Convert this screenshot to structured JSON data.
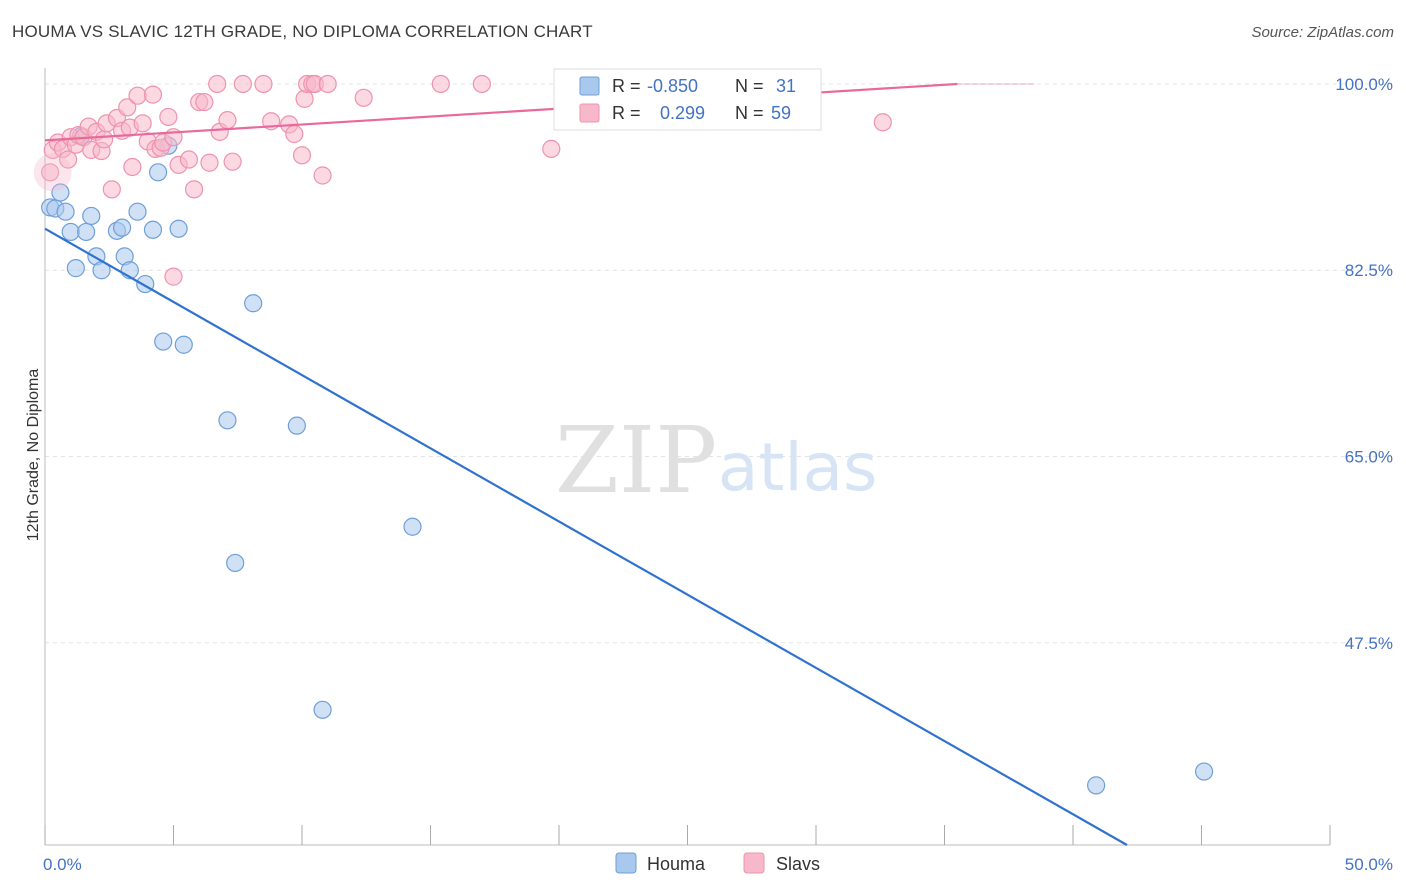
{
  "title": "HOUMA VS SLAVIC 12TH GRADE, NO DIPLOMA CORRELATION CHART",
  "source": "Source: ZipAtlas.com",
  "watermark": {
    "zip": "ZIP",
    "atlas": "atlas"
  },
  "colors": {
    "houma_fill": "#a9c8ee",
    "houma_stroke": "#6e9fd8",
    "houma_line": "#2f72cf",
    "slavs_fill": "#f7b8cb",
    "slavs_stroke": "#ee93ae",
    "slavs_line": "#e8699a",
    "tick_text": "#4472c4",
    "grid": "#e4e4e4"
  },
  "legend": {
    "rows": [
      {
        "series": "Houma",
        "r_label": "R =",
        "r_value": "-0.850",
        "n_label": "N =",
        "n_value": "31"
      },
      {
        "series": "Slavs",
        "r_label": "R =",
        "r_value": "0.299",
        "n_label": "N =",
        "n_value": "59"
      }
    ]
  },
  "bottom_legend": [
    "Houma",
    "Slavs"
  ],
  "chart_data": {
    "type": "scatter",
    "title": "HOUMA VS SLAVIC 12TH GRADE, NO DIPLOMA CORRELATION CHART",
    "xlabel": "",
    "ylabel": "12th Grade, No Diploma",
    "xlim": [
      0,
      50
    ],
    "ylim": [
      28.5,
      101.5
    ],
    "x_tick_labels": [
      "0.0%",
      "50.0%"
    ],
    "y_ticks": [
      {
        "value": 100.0,
        "label": "100.0%"
      },
      {
        "value": 82.5,
        "label": "82.5%"
      },
      {
        "value": 65.0,
        "label": "65.0%"
      },
      {
        "value": 47.5,
        "label": "47.5%"
      }
    ],
    "grid": true,
    "series": [
      {
        "name": "Houma",
        "points": [
          [
            0.2,
            88.4
          ],
          [
            0.4,
            88.3
          ],
          [
            0.6,
            89.8
          ],
          [
            0.8,
            88.0
          ],
          [
            1.0,
            86.1
          ],
          [
            1.2,
            82.7
          ],
          [
            1.4,
            95.1
          ],
          [
            1.6,
            86.1
          ],
          [
            1.8,
            87.6
          ],
          [
            2.0,
            83.8
          ],
          [
            2.2,
            82.5
          ],
          [
            2.8,
            86.2
          ],
          [
            3.0,
            86.5
          ],
          [
            3.1,
            83.8
          ],
          [
            3.3,
            82.5
          ],
          [
            3.6,
            88.0
          ],
          [
            3.9,
            81.2
          ],
          [
            4.2,
            86.3
          ],
          [
            4.4,
            91.7
          ],
          [
            4.6,
            75.8
          ],
          [
            5.2,
            86.4
          ],
          [
            5.4,
            75.5
          ],
          [
            7.1,
            68.4
          ],
          [
            7.4,
            55.0
          ],
          [
            8.1,
            79.4
          ],
          [
            9.8,
            67.9
          ],
          [
            10.8,
            41.2
          ],
          [
            14.3,
            58.4
          ],
          [
            40.9,
            34.1
          ],
          [
            45.1,
            35.4
          ],
          [
            4.8,
            94.2
          ]
        ],
        "trendline": {
          "x": [
            0,
            42.1
          ],
          "y": [
            86.4,
            28.5
          ]
        }
      },
      {
        "name": "Slavs",
        "points": [
          [
            0.2,
            91.7
          ],
          [
            0.3,
            93.8
          ],
          [
            0.5,
            94.5
          ],
          [
            0.7,
            93.9
          ],
          [
            0.9,
            92.9
          ],
          [
            1.0,
            95.0
          ],
          [
            1.2,
            94.3
          ],
          [
            1.3,
            95.2
          ],
          [
            1.5,
            95.0
          ],
          [
            1.7,
            96.0
          ],
          [
            1.8,
            93.8
          ],
          [
            2.0,
            95.5
          ],
          [
            2.2,
            93.7
          ],
          [
            2.3,
            94.8
          ],
          [
            2.4,
            96.3
          ],
          [
            2.6,
            90.1
          ],
          [
            2.8,
            96.8
          ],
          [
            3.0,
            95.6
          ],
          [
            3.2,
            97.8
          ],
          [
            3.3,
            95.9
          ],
          [
            3.4,
            92.2
          ],
          [
            3.6,
            98.9
          ],
          [
            3.8,
            96.3
          ],
          [
            4.0,
            94.6
          ],
          [
            4.2,
            99.0
          ],
          [
            4.3,
            93.9
          ],
          [
            4.5,
            94.0
          ],
          [
            4.6,
            94.5
          ],
          [
            4.8,
            96.9
          ],
          [
            5.0,
            95.0
          ],
          [
            5.2,
            92.4
          ],
          [
            5.6,
            92.9
          ],
          [
            5.8,
            90.1
          ],
          [
            6.0,
            98.3
          ],
          [
            6.2,
            98.3
          ],
          [
            6.4,
            92.6
          ],
          [
            6.7,
            100.0
          ],
          [
            6.8,
            95.5
          ],
          [
            7.1,
            96.6
          ],
          [
            7.3,
            92.7
          ],
          [
            7.7,
            100.0
          ],
          [
            8.5,
            100.0
          ],
          [
            8.8,
            96.5
          ],
          [
            9.5,
            96.2
          ],
          [
            9.7,
            95.3
          ],
          [
            10.0,
            93.3
          ],
          [
            10.1,
            98.6
          ],
          [
            10.2,
            100.0
          ],
          [
            10.4,
            100.0
          ],
          [
            10.5,
            100.0
          ],
          [
            10.8,
            91.4
          ],
          [
            11.0,
            100.0
          ],
          [
            12.4,
            98.7
          ],
          [
            15.4,
            100.0
          ],
          [
            17.0,
            100.0
          ],
          [
            19.7,
            93.9
          ],
          [
            21.9,
            100.0
          ],
          [
            32.6,
            96.4
          ],
          [
            5.0,
            81.9
          ]
        ],
        "trendline": {
          "x": [
            0,
            35.5
          ],
          "y": [
            94.7,
            100.0
          ]
        }
      }
    ]
  }
}
